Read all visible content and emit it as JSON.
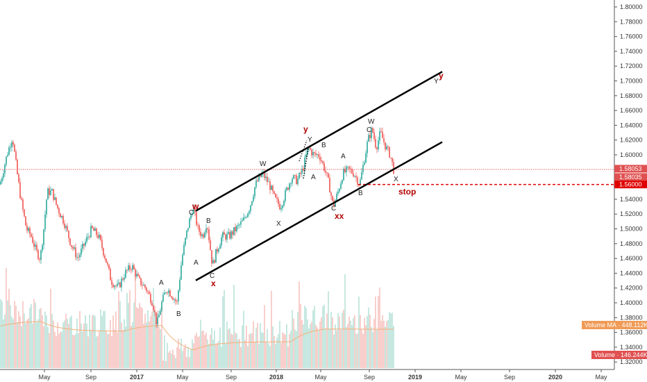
{
  "chart_data": {
    "type": "candlestick",
    "price_axis": {
      "min": 1.31,
      "max": 1.81,
      "ticks": [
        "1.80000",
        "1.78000",
        "1.76000",
        "1.74000",
        "1.72000",
        "1.70000",
        "1.68000",
        "1.66000",
        "1.64000",
        "1.62000",
        "1.60000",
        "1.58000",
        "1.56000",
        "1.54000",
        "1.52000",
        "1.50000",
        "1.48000",
        "1.46000",
        "1.44000",
        "1.42000",
        "1.40000",
        "1.38000",
        "1.36000",
        "1.34000",
        "1.32000"
      ]
    },
    "time_axis": {
      "labels": [
        {
          "text": "May",
          "bold": false
        },
        {
          "text": "Sep",
          "bold": false
        },
        {
          "text": "2017",
          "bold": true
        },
        {
          "text": "May",
          "bold": false
        },
        {
          "text": "Sep",
          "bold": false
        },
        {
          "text": "2018",
          "bold": true
        },
        {
          "text": "May",
          "bold": false
        },
        {
          "text": "Sep",
          "bold": false
        },
        {
          "text": "2019",
          "bold": true
        },
        {
          "text": "May",
          "bold": false
        },
        {
          "text": "Sep",
          "bold": false
        },
        {
          "text": "2020",
          "bold": true
        },
        {
          "text": "May",
          "bold": false
        }
      ]
    },
    "price_path": [
      [
        0,
        1.56
      ],
      [
        10,
        1.6
      ],
      [
        18,
        1.625
      ],
      [
        24,
        1.58
      ],
      [
        30,
        1.54
      ],
      [
        38,
        1.5
      ],
      [
        45,
        1.49
      ],
      [
        52,
        1.47
      ],
      [
        58,
        1.46
      ],
      [
        63,
        1.5
      ],
      [
        68,
        1.55
      ],
      [
        75,
        1.55
      ],
      [
        82,
        1.53
      ],
      [
        92,
        1.51
      ],
      [
        102,
        1.48
      ],
      [
        112,
        1.46
      ],
      [
        122,
        1.48
      ],
      [
        132,
        1.5
      ],
      [
        142,
        1.49
      ],
      [
        152,
        1.46
      ],
      [
        160,
        1.43
      ],
      [
        170,
        1.42
      ],
      [
        180,
        1.44
      ],
      [
        190,
        1.45
      ],
      [
        200,
        1.43
      ],
      [
        210,
        1.42
      ],
      [
        220,
        1.4
      ],
      [
        226,
        1.37
      ],
      [
        233,
        1.4
      ],
      [
        240,
        1.42
      ],
      [
        248,
        1.41
      ],
      [
        255,
        1.4
      ],
      [
        262,
        1.46
      ],
      [
        270,
        1.5
      ],
      [
        278,
        1.53
      ],
      [
        285,
        1.5
      ],
      [
        292,
        1.49
      ],
      [
        298,
        1.51
      ],
      [
        302,
        1.48
      ],
      [
        306,
        1.45
      ],
      [
        312,
        1.47
      ],
      [
        320,
        1.49
      ],
      [
        330,
        1.49
      ],
      [
        340,
        1.5
      ],
      [
        350,
        1.51
      ],
      [
        360,
        1.53
      ],
      [
        368,
        1.56
      ],
      [
        378,
        1.575
      ],
      [
        388,
        1.56
      ],
      [
        396,
        1.54
      ],
      [
        404,
        1.53
      ],
      [
        412,
        1.55
      ],
      [
        420,
        1.57
      ],
      [
        428,
        1.565
      ],
      [
        436,
        1.58
      ],
      [
        444,
        1.61
      ],
      [
        452,
        1.6
      ],
      [
        460,
        1.6
      ],
      [
        468,
        1.58
      ],
      [
        474,
        1.56
      ],
      [
        480,
        1.53
      ],
      [
        487,
        1.55
      ],
      [
        494,
        1.575
      ],
      [
        502,
        1.58
      ],
      [
        510,
        1.575
      ],
      [
        518,
        1.56
      ],
      [
        524,
        1.59
      ],
      [
        530,
        1.62
      ],
      [
        536,
        1.635
      ],
      [
        542,
        1.61
      ],
      [
        548,
        1.63
      ],
      [
        556,
        1.61
      ],
      [
        562,
        1.6
      ],
      [
        567,
        1.58
      ]
    ],
    "last_price": 1.58035,
    "current_price_label": "1.58053",
    "last_price_label": "1.58035",
    "stop_level": 1.56,
    "stop_level_label": "1.56000",
    "stop_label": "stop",
    "volume": {
      "ma_label": "Volume MA",
      "ma_value": "448.112K",
      "value_label": "Volume",
      "value": "146.244K"
    },
    "channel": {
      "upper": {
        "from": {
          "x": 282,
          "price": 1.5243
        },
        "to": {
          "x": 637,
          "price": 1.7125
        }
      },
      "lower": {
        "from": {
          "x": 282,
          "price": 1.4303
        },
        "to": {
          "x": 637,
          "price": 1.6174
        }
      }
    },
    "wave_labels": {
      "black": [
        "C",
        "B",
        "A",
        "C",
        "W",
        "X",
        "Y",
        "A",
        "B",
        "C",
        "A",
        "B",
        "W",
        "C",
        "X",
        "Y",
        "A",
        "B"
      ],
      "red": [
        "w",
        "x",
        "y",
        "xx",
        "y"
      ]
    },
    "colors": {
      "up": "#26a69a",
      "down": "#ef5350",
      "wave_red": "#b00000",
      "stop_line": "#e00000",
      "volume_ma": "#f2b07a"
    }
  }
}
